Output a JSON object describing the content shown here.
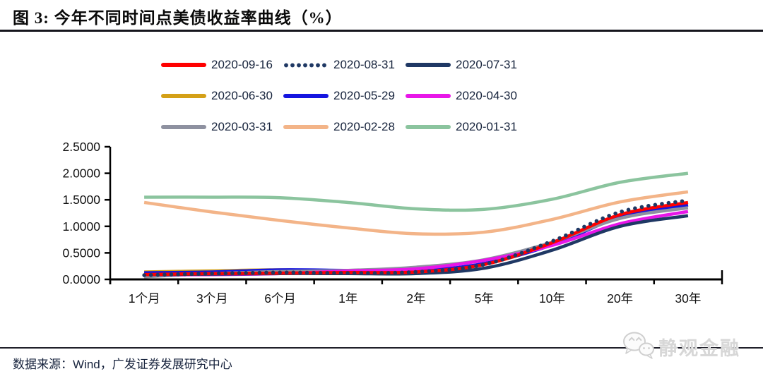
{
  "header": {
    "title": "图 3: 今年不同时间点美债收益率曲线（%）"
  },
  "footer": {
    "source": "数据来源：Wind，广发证券发展研究中心"
  },
  "watermark": {
    "label": "静观金融",
    "icon": "wechat-icon"
  },
  "colors": {
    "axis": "#000000",
    "text": "#16233c",
    "watermark_gray": "#d7d7d7"
  },
  "chart_data": {
    "type": "line",
    "title": "图 3: 今年不同时间点美债收益率曲线（%）",
    "xlabel": "",
    "ylabel": "",
    "categories": [
      "1个月",
      "3个月",
      "6个月",
      "1年",
      "2年",
      "5年",
      "10年",
      "20年",
      "30年"
    ],
    "ylim": [
      0,
      2.5
    ],
    "y_tick_step": 0.5,
    "y_tick_labels": [
      "0.0000",
      "0.5000",
      "1.0000",
      "1.5000",
      "2.0000",
      "2.5000"
    ],
    "grid": false,
    "legend_position": "top-center",
    "series": [
      {
        "name": "2020-09-16",
        "color": "#FF0000",
        "style": "solid",
        "values": [
          0.09,
          0.11,
          0.12,
          0.13,
          0.14,
          0.28,
          0.69,
          1.22,
          1.45
        ]
      },
      {
        "name": "2020-08-31",
        "color": "#1F3864",
        "style": "dotted",
        "values": [
          0.08,
          0.11,
          0.13,
          0.12,
          0.14,
          0.28,
          0.72,
          1.27,
          1.49
        ]
      },
      {
        "name": "2020-07-31",
        "color": "#1F3864",
        "style": "solid",
        "values": [
          0.09,
          0.1,
          0.11,
          0.11,
          0.11,
          0.21,
          0.55,
          1.0,
          1.2
        ]
      },
      {
        "name": "2020-06-30",
        "color": "#D4A017",
        "style": "solid",
        "values": [
          0.14,
          0.16,
          0.18,
          0.16,
          0.16,
          0.29,
          0.66,
          1.18,
          1.41
        ]
      },
      {
        "name": "2020-05-29",
        "color": "#1515E0",
        "style": "solid",
        "values": [
          0.125,
          0.14,
          0.18,
          0.17,
          0.16,
          0.3,
          0.65,
          1.17,
          1.4
        ]
      },
      {
        "name": "2020-04-30",
        "color": "#E816E8",
        "style": "solid",
        "values": [
          0.09,
          0.09,
          0.11,
          0.16,
          0.2,
          0.36,
          0.64,
          1.05,
          1.28
        ]
      },
      {
        "name": "2020-03-31",
        "color": "#8E91A0",
        "style": "solid",
        "values": [
          0.05,
          0.11,
          0.15,
          0.17,
          0.23,
          0.37,
          0.7,
          1.15,
          1.35
        ]
      },
      {
        "name": "2020-02-28",
        "color": "#F3B488",
        "style": "solid",
        "values": [
          1.45,
          1.27,
          1.11,
          0.97,
          0.86,
          0.89,
          1.13,
          1.46,
          1.65
        ]
      },
      {
        "name": "2020-01-31",
        "color": "#8BC49E",
        "style": "solid",
        "values": [
          1.55,
          1.55,
          1.54,
          1.45,
          1.33,
          1.32,
          1.51,
          1.83,
          2.0
        ]
      }
    ],
    "draw_order": [
      8,
      7,
      3,
      4,
      6,
      5,
      2,
      0,
      1
    ]
  }
}
